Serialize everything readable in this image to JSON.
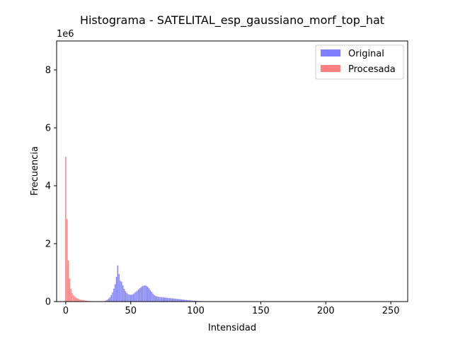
{
  "chart_data": {
    "type": "bar",
    "title": "Histograma - SATELITAL_esp_gaussiano_morf_top_hat",
    "xlabel": "Intensidad",
    "ylabel": "Frecuencia",
    "offset_text": "1e6",
    "xlim": [
      -7,
      263
    ],
    "ylim": [
      0,
      9000000
    ],
    "x_ticks": [
      0,
      50,
      100,
      150,
      200,
      250
    ],
    "y_ticks": [
      0,
      2000000,
      4000000,
      6000000,
      8000000
    ],
    "x_tick_labels": [
      "0",
      "50",
      "100",
      "150",
      "200",
      "250"
    ],
    "y_tick_labels": [
      "0",
      "2",
      "4",
      "6",
      "8"
    ],
    "legend": {
      "position": "top-right",
      "entries": [
        "Original",
        "Procesada"
      ]
    },
    "colors": {
      "Original": "#7f7fff",
      "Procesada": "#ff7f7f"
    },
    "series": [
      {
        "name": "Original",
        "x": [
          28,
          29,
          30,
          31,
          32,
          33,
          34,
          35,
          36,
          37,
          38,
          39,
          40,
          41,
          42,
          43,
          44,
          45,
          46,
          47,
          48,
          49,
          50,
          51,
          52,
          53,
          54,
          55,
          56,
          57,
          58,
          59,
          60,
          61,
          62,
          63,
          64,
          65,
          66,
          67,
          68,
          69,
          70,
          71,
          72,
          73,
          74,
          75,
          76,
          77,
          78,
          79,
          80,
          81,
          82,
          83,
          84,
          85,
          86,
          87,
          88,
          89,
          90,
          91,
          92,
          93,
          94,
          95,
          96,
          97,
          98,
          99,
          100,
          101,
          102,
          103,
          104,
          105,
          106,
          107,
          108,
          109,
          110,
          111,
          112,
          113,
          114,
          115,
          116,
          117,
          118,
          119,
          120,
          121,
          122,
          123,
          124,
          125
        ],
        "values": [
          5000,
          10000,
          20000,
          40000,
          60000,
          100000,
          150000,
          220000,
          320000,
          450000,
          600000,
          850000,
          1250000,
          950000,
          720000,
          680000,
          560000,
          440000,
          360000,
          300000,
          260000,
          240000,
          230000,
          240000,
          260000,
          300000,
          340000,
          380000,
          420000,
          460000,
          500000,
          530000,
          550000,
          560000,
          540000,
          510000,
          460000,
          400000,
          340000,
          280000,
          230000,
          200000,
          180000,
          170000,
          160000,
          155000,
          150000,
          145000,
          140000,
          135000,
          130000,
          125000,
          120000,
          115000,
          110000,
          105000,
          100000,
          95000,
          90000,
          85000,
          80000,
          75000,
          70000,
          65000,
          60000,
          55000,
          50000,
          45000,
          40000,
          35000,
          32000,
          29000,
          26000,
          23000,
          20000,
          17000,
          15000,
          13000,
          11000,
          9000,
          8000,
          7000,
          6000,
          5000,
          4000,
          3500,
          3000,
          2500,
          2000,
          1500,
          1200,
          1000,
          800,
          600,
          500,
          400,
          300,
          200
        ]
      },
      {
        "name": "Procesada",
        "x": [
          0,
          1,
          2,
          3,
          4,
          5,
          6,
          7,
          8,
          9,
          10,
          11,
          12,
          13,
          14,
          15,
          16,
          17,
          18,
          19,
          20,
          21,
          22,
          23,
          24,
          25,
          26,
          27,
          28,
          29,
          30
        ],
        "values": [
          5000000,
          2850000,
          1420000,
          800000,
          440000,
          300000,
          220000,
          170000,
          140000,
          110000,
          90000,
          75000,
          62000,
          52000,
          44000,
          37000,
          31000,
          26000,
          22000,
          18000,
          15000,
          12000,
          10000,
          8000,
          6500,
          5000,
          4000,
          3000,
          2500,
          2000,
          1500
        ]
      }
    ]
  }
}
